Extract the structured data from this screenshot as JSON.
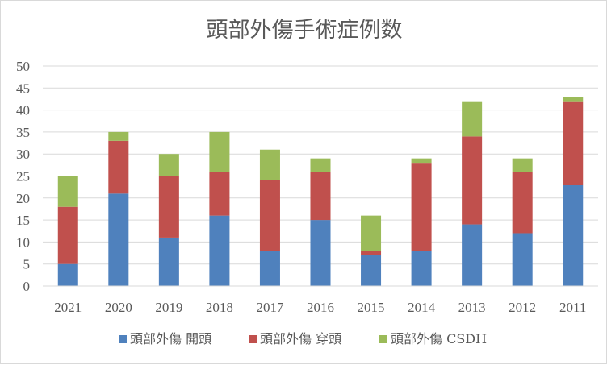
{
  "chart_data": {
    "type": "bar",
    "stacked": true,
    "title": "頭部外傷手術症例数",
    "categories": [
      "2021",
      "2020",
      "2019",
      "2018",
      "2017",
      "2016",
      "2015",
      "2014",
      "2013",
      "2012",
      "2011"
    ],
    "series": [
      {
        "name": "頭部外傷 開頭",
        "color": "#4f81bd",
        "values": [
          5,
          21,
          11,
          16,
          8,
          15,
          7,
          8,
          14,
          12,
          23
        ]
      },
      {
        "name": "頭部外傷 穿頭",
        "color": "#c0504d",
        "values": [
          13,
          12,
          14,
          10,
          16,
          11,
          1,
          20,
          20,
          14,
          19
        ]
      },
      {
        "name": "頭部外傷 CSDH",
        "color": "#9bbb59",
        "values": [
          7,
          2,
          5,
          9,
          7,
          3,
          8,
          1,
          8,
          3,
          1
        ]
      }
    ],
    "ylim": [
      0,
      50
    ],
    "yticks": [
      0,
      5,
      10,
      15,
      20,
      25,
      30,
      35,
      40,
      45,
      50
    ],
    "grid": true,
    "legend": "bottom",
    "xlabel": "",
    "ylabel": ""
  }
}
